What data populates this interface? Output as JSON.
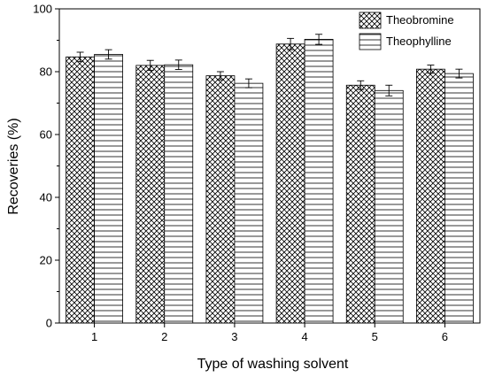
{
  "chart_data": {
    "type": "bar",
    "categories": [
      "1",
      "2",
      "3",
      "4",
      "5",
      "6"
    ],
    "series": [
      {
        "name": "Theobromine",
        "pattern": "crosshatch",
        "values": [
          84.7,
          82.0,
          78.7,
          88.8,
          75.7,
          80.8
        ],
        "errors": [
          1.5,
          1.6,
          1.3,
          1.8,
          1.4,
          1.3
        ]
      },
      {
        "name": "Theophylline",
        "pattern": "horizontal-lines",
        "values": [
          85.5,
          82.2,
          76.3,
          90.3,
          74.0,
          79.4
        ],
        "errors": [
          1.5,
          1.5,
          1.4,
          1.6,
          1.7,
          1.4
        ]
      }
    ],
    "xlabel": "Type of washing solvent",
    "ylabel": "Recoveries (%)",
    "ylim": [
      0,
      100
    ],
    "yticks": [
      "0",
      "20",
      "40",
      "60",
      "80",
      "100"
    ],
    "grid": false,
    "legend_position": "top-right",
    "error_bars": true
  }
}
